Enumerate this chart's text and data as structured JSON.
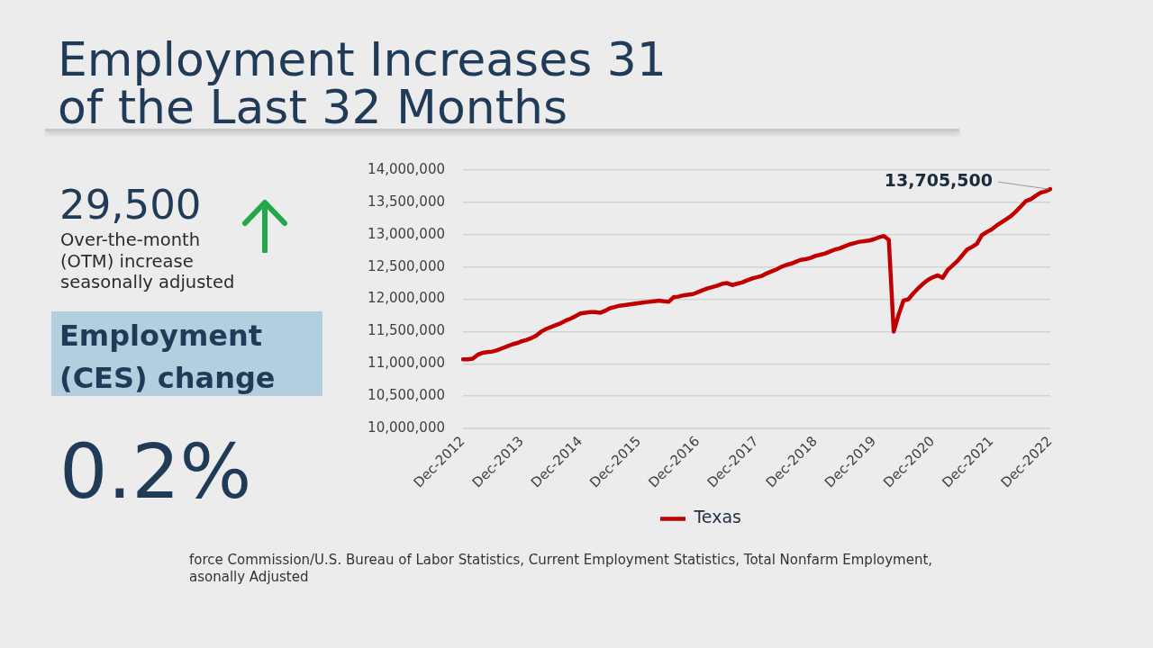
{
  "chart_data": {
    "type": "line",
    "title": "Employment Increases 31 of the Last 32 Months",
    "categories": [
      "Dec-2012",
      null,
      null,
      null,
      null,
      null,
      null,
      null,
      null,
      null,
      null,
      null,
      "Dec-2013",
      null,
      null,
      null,
      null,
      null,
      null,
      null,
      null,
      null,
      null,
      null,
      "Dec-2014",
      null,
      null,
      null,
      null,
      null,
      null,
      null,
      null,
      null,
      null,
      null,
      "Dec-2015",
      null,
      null,
      null,
      null,
      null,
      null,
      null,
      null,
      null,
      null,
      null,
      "Dec-2016",
      null,
      null,
      null,
      null,
      null,
      null,
      null,
      null,
      null,
      null,
      null,
      "Dec-2017",
      null,
      null,
      null,
      null,
      null,
      null,
      null,
      null,
      null,
      null,
      null,
      "Dec-2018",
      null,
      null,
      null,
      null,
      null,
      null,
      null,
      null,
      null,
      null,
      null,
      "Dec-2019",
      null,
      null,
      null,
      null,
      null,
      null,
      null,
      null,
      null,
      null,
      null,
      "Dec-2020",
      null,
      null,
      null,
      null,
      null,
      null,
      null,
      null,
      null,
      null,
      null,
      "Dec-2021",
      null,
      null,
      null,
      null,
      null,
      null,
      null,
      null,
      null,
      null,
      null,
      "Dec-2022"
    ],
    "series": [
      {
        "name": "Texas",
        "color": "#c00000",
        "values": [
          11070000,
          11070000,
          11080000,
          11140000,
          11170000,
          11180000,
          11190000,
          11210000,
          11240000,
          11270000,
          11300000,
          11320000,
          11350000,
          11370000,
          11400000,
          11440000,
          11500000,
          11540000,
          11570000,
          11600000,
          11630000,
          11670000,
          11700000,
          11740000,
          11780000,
          11790000,
          11800000,
          11800000,
          11790000,
          11820000,
          11860000,
          11880000,
          11900000,
          11910000,
          11920000,
          11930000,
          11940000,
          11950000,
          11960000,
          11970000,
          11980000,
          11970000,
          11960000,
          12030000,
          12040000,
          12060000,
          12070000,
          12080000,
          12110000,
          12140000,
          12170000,
          12190000,
          12210000,
          12240000,
          12250000,
          12220000,
          12240000,
          12260000,
          12290000,
          12320000,
          12340000,
          12360000,
          12400000,
          12430000,
          12460000,
          12500000,
          12530000,
          12550000,
          12580000,
          12610000,
          12620000,
          12640000,
          12670000,
          12690000,
          12710000,
          12740000,
          12770000,
          12790000,
          12820000,
          12850000,
          12870000,
          12890000,
          12900000,
          12910000,
          12930000,
          12960000,
          12980000,
          12920000,
          11500000,
          11760000,
          11980000,
          12000000,
          12090000,
          12170000,
          12240000,
          12300000,
          12340000,
          12370000,
          12330000,
          12450000,
          12520000,
          12590000,
          12680000,
          12770000,
          12810000,
          12860000,
          12990000,
          13040000,
          13080000,
          13140000,
          13190000,
          13240000,
          13290000,
          13360000,
          13440000,
          13520000,
          13550000,
          13600000,
          13650000,
          13670000,
          13705500
        ],
        "value_labels": [
          null,
          null,
          null,
          null,
          null,
          null,
          null,
          null,
          null,
          null,
          null,
          null,
          null,
          null,
          null,
          null,
          null,
          null,
          null,
          null,
          null,
          null,
          null,
          null,
          null,
          null,
          null,
          null,
          null,
          null,
          null,
          null,
          null,
          null,
          null,
          null,
          null,
          null,
          null,
          null,
          null,
          null,
          null,
          null,
          null,
          null,
          null,
          null,
          null,
          null,
          null,
          null,
          null,
          null,
          null,
          null,
          null,
          null,
          null,
          null,
          null,
          null,
          null,
          null,
          null,
          null,
          null,
          null,
          null,
          null,
          null,
          null,
          null,
          null,
          null,
          null,
          null,
          null,
          null,
          null,
          null,
          null,
          null,
          null,
          null,
          null,
          null,
          null,
          null,
          null,
          null,
          null,
          null,
          null,
          null,
          null,
          null,
          null,
          null,
          null,
          null,
          null,
          null,
          null,
          null,
          null,
          null,
          null,
          null,
          null,
          null,
          null,
          null,
          null,
          null,
          null,
          null,
          null,
          null,
          null,
          "13,705,500"
        ]
      }
    ],
    "ylim": [
      10000000,
      14000000
    ],
    "yticks": [
      {
        "value": 10000000,
        "label": "10,000,000"
      },
      {
        "value": 10500000,
        "label": "10,500,000"
      },
      {
        "value": 11000000,
        "label": "11,000,000"
      },
      {
        "value": 11500000,
        "label": "11,500,000"
      },
      {
        "value": 12000000,
        "label": "12,000,000"
      },
      {
        "value": 12500000,
        "label": "12,500,000"
      },
      {
        "value": 13000000,
        "label": "13,000,000"
      },
      {
        "value": 13500000,
        "label": "13,500,000"
      },
      {
        "value": 14000000,
        "label": "14,000,000"
      }
    ],
    "grid": "y",
    "legend": "bottom",
    "marker": "none",
    "annotations": [
      "29,500",
      "Over-the-month\n(OTM) increase\nseasonally adjusted",
      "Employment\n(CES) change",
      "0.2%",
      "force Commission/U.S. Bureau of Labor Statistics, Current Employment Statistics, Total Nonfarm Employment,\nasonally Adjusted"
    ]
  }
}
